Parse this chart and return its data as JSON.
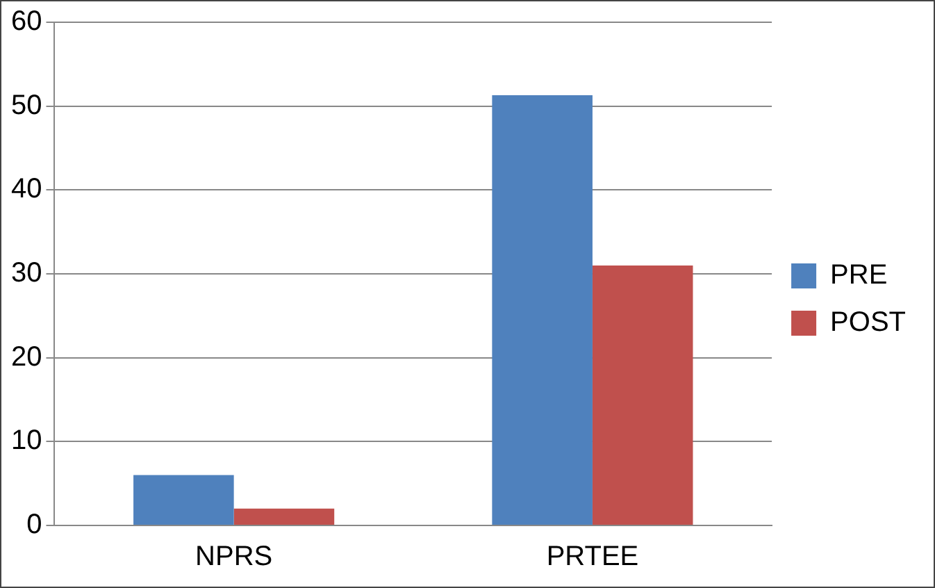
{
  "chart_data": {
    "type": "bar",
    "categories": [
      "NPRS",
      "PRTEE"
    ],
    "series": [
      {
        "name": "PRE",
        "color": "#4f81bd",
        "values": [
          6,
          51.3
        ]
      },
      {
        "name": "POST",
        "color": "#c0504d",
        "values": [
          2,
          31
        ]
      }
    ],
    "ylim": [
      0,
      60
    ],
    "yticks": [
      0,
      10,
      20,
      30,
      40,
      50,
      60
    ],
    "grid": "y",
    "legend": "right"
  }
}
